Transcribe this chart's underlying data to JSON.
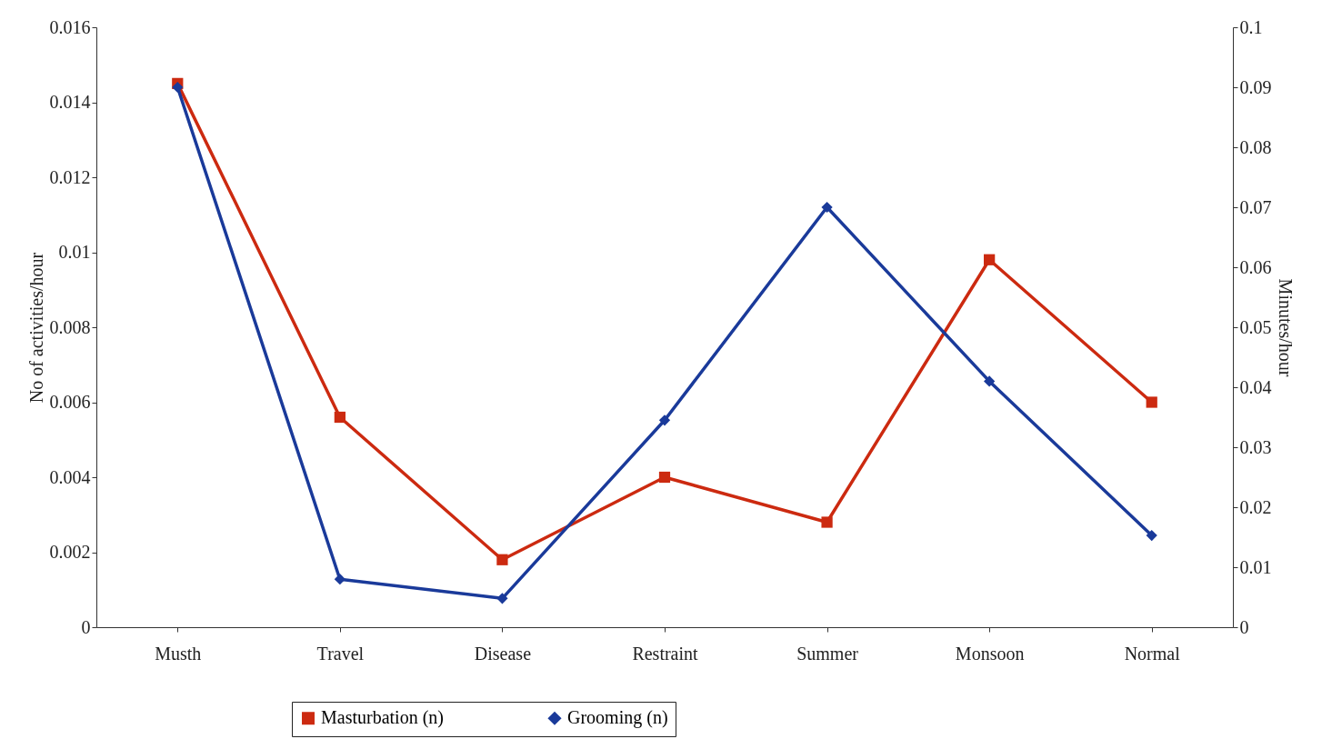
{
  "chart_data": {
    "type": "line",
    "ylabel": "No of activities/hour",
    "y2label": "Minutes/hour",
    "categories": [
      "Musth",
      "Travel",
      "Disease",
      "Restraint",
      "Summer",
      "Monsoon",
      "Normal"
    ],
    "series": [
      {
        "name": "Masturbation (n)",
        "color": "#cc2a10",
        "marker": "square",
        "values": [
          0.0145,
          0.0056,
          0.0018,
          0.004,
          0.0028,
          0.0098,
          0.006
        ]
      },
      {
        "name": "Grooming (n)",
        "color": "#1a3a9a",
        "marker": "diamond",
        "axis": "y2",
        "values": [
          0.09,
          0.008,
          0.0048,
          0.0345,
          0.07,
          0.041,
          0.0153
        ]
      }
    ],
    "ylim": [
      0,
      0.016
    ],
    "yticks": [
      0,
      0.002,
      0.004,
      0.006,
      0.008,
      0.01,
      0.012,
      0.014,
      0.016
    ],
    "y2lim": [
      0,
      0.1
    ],
    "y2ticks": [
      0,
      0.01,
      0.02,
      0.03,
      0.04,
      0.05,
      0.06,
      0.07,
      0.08,
      0.09,
      0.1
    ],
    "grid": false,
    "legend": "bottom",
    "line_style": "solid"
  }
}
